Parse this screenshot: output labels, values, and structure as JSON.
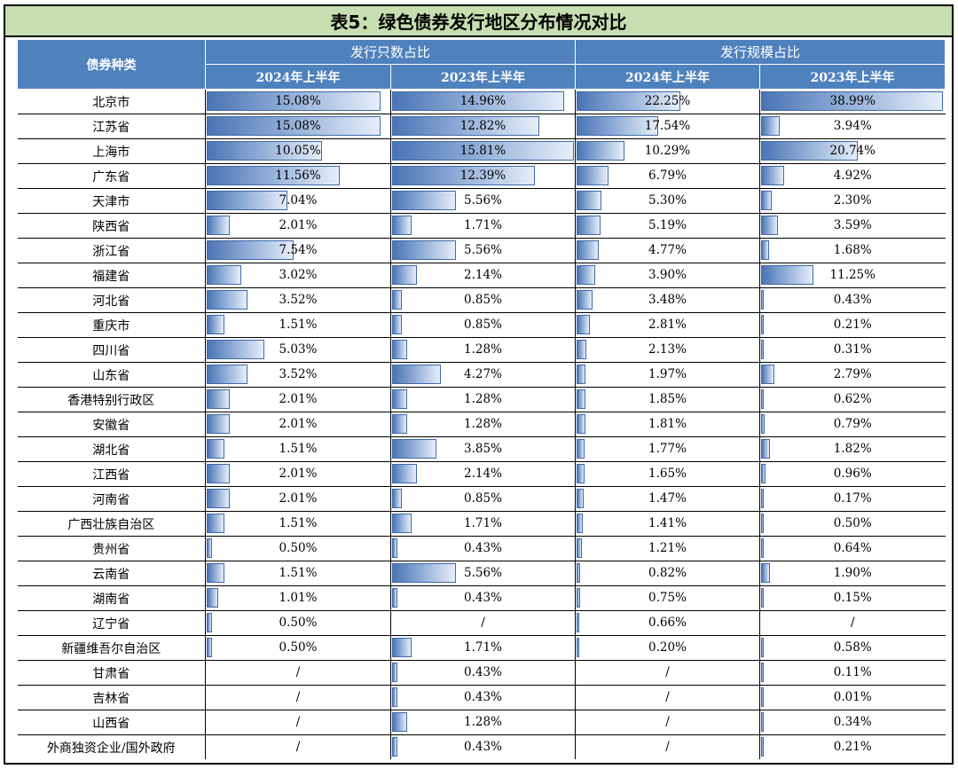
{
  "title": "表5：绿色债券发行地区分布情况对比",
  "header": {
    "category": "债券种类",
    "group_count": "发行只数占比",
    "group_scale": "发行规模占比",
    "col_2024h1": "2024年上半年",
    "col_2023h1": "2023年上半年"
  },
  "rows": [
    {
      "region": "北京市",
      "count_2024": "15.08%",
      "count_2023": "14.96%",
      "scale_2024": "22.25%",
      "scale_2023": "38.99%"
    },
    {
      "region": "江苏省",
      "count_2024": "15.08%",
      "count_2023": "12.82%",
      "scale_2024": "17.54%",
      "scale_2023": "3.94%"
    },
    {
      "region": "上海市",
      "count_2024": "10.05%",
      "count_2023": "15.81%",
      "scale_2024": "10.29%",
      "scale_2023": "20.74%"
    },
    {
      "region": "广东省",
      "count_2024": "11.56%",
      "count_2023": "12.39%",
      "scale_2024": "6.79%",
      "scale_2023": "4.92%"
    },
    {
      "region": "天津市",
      "count_2024": "7.04%",
      "count_2023": "5.56%",
      "scale_2024": "5.30%",
      "scale_2023": "2.30%"
    },
    {
      "region": "陕西省",
      "count_2024": "2.01%",
      "count_2023": "1.71%",
      "scale_2024": "5.19%",
      "scale_2023": "3.59%"
    },
    {
      "region": "浙江省",
      "count_2024": "7.54%",
      "count_2023": "5.56%",
      "scale_2024": "4.77%",
      "scale_2023": "1.68%"
    },
    {
      "region": "福建省",
      "count_2024": "3.02%",
      "count_2023": "2.14%",
      "scale_2024": "3.90%",
      "scale_2023": "11.25%"
    },
    {
      "region": "河北省",
      "count_2024": "3.52%",
      "count_2023": "0.85%",
      "scale_2024": "3.48%",
      "scale_2023": "0.43%"
    },
    {
      "region": "重庆市",
      "count_2024": "1.51%",
      "count_2023": "0.85%",
      "scale_2024": "2.81%",
      "scale_2023": "0.21%"
    },
    {
      "region": "四川省",
      "count_2024": "5.03%",
      "count_2023": "1.28%",
      "scale_2024": "2.13%",
      "scale_2023": "0.31%"
    },
    {
      "region": "山东省",
      "count_2024": "3.52%",
      "count_2023": "4.27%",
      "scale_2024": "1.97%",
      "scale_2023": "2.79%"
    },
    {
      "region": "香港特别行政区",
      "count_2024": "2.01%",
      "count_2023": "1.28%",
      "scale_2024": "1.85%",
      "scale_2023": "0.62%"
    },
    {
      "region": "安徽省",
      "count_2024": "2.01%",
      "count_2023": "1.28%",
      "scale_2024": "1.81%",
      "scale_2023": "0.79%"
    },
    {
      "region": "湖北省",
      "count_2024": "1.51%",
      "count_2023": "3.85%",
      "scale_2024": "1.77%",
      "scale_2023": "1.82%"
    },
    {
      "region": "江西省",
      "count_2024": "2.01%",
      "count_2023": "2.14%",
      "scale_2024": "1.65%",
      "scale_2023": "0.96%"
    },
    {
      "region": "河南省",
      "count_2024": "2.01%",
      "count_2023": "0.85%",
      "scale_2024": "1.47%",
      "scale_2023": "0.17%"
    },
    {
      "region": "广西壮族自治区",
      "count_2024": "1.51%",
      "count_2023": "1.71%",
      "scale_2024": "1.41%",
      "scale_2023": "0.50%"
    },
    {
      "region": "贵州省",
      "count_2024": "0.50%",
      "count_2023": "0.43%",
      "scale_2024": "1.21%",
      "scale_2023": "0.64%"
    },
    {
      "region": "云南省",
      "count_2024": "1.51%",
      "count_2023": "5.56%",
      "scale_2024": "0.82%",
      "scale_2023": "1.90%"
    },
    {
      "region": "湖南省",
      "count_2024": "1.01%",
      "count_2023": "0.43%",
      "scale_2024": "0.75%",
      "scale_2023": "0.15%"
    },
    {
      "region": "辽宁省",
      "count_2024": "0.50%",
      "count_2023": "/",
      "scale_2024": "0.66%",
      "scale_2023": "/"
    },
    {
      "region": "新疆维吾尔自治区",
      "count_2024": "0.50%",
      "count_2023": "1.71%",
      "scale_2024": "0.20%",
      "scale_2023": "0.58%"
    },
    {
      "region": "甘肃省",
      "count_2024": "/",
      "count_2023": "0.43%",
      "scale_2024": "/",
      "scale_2023": "0.11%"
    },
    {
      "region": "吉林省",
      "count_2024": "/",
      "count_2023": "0.43%",
      "scale_2024": "/",
      "scale_2023": "0.01%"
    },
    {
      "region": "山西省",
      "count_2024": "/",
      "count_2023": "1.28%",
      "scale_2024": "/",
      "scale_2023": "0.34%"
    },
    {
      "region": "外商独资企业/国外政府",
      "count_2024": "/",
      "count_2023": "0.43%",
      "scale_2024": "/",
      "scale_2023": "0.21%"
    }
  ],
  "colors": {
    "header_bg": "#4f81bd",
    "title_bg": "#c6deb0",
    "bar_dark": "#4a74b4",
    "bar_light": "#e6eef9"
  }
}
